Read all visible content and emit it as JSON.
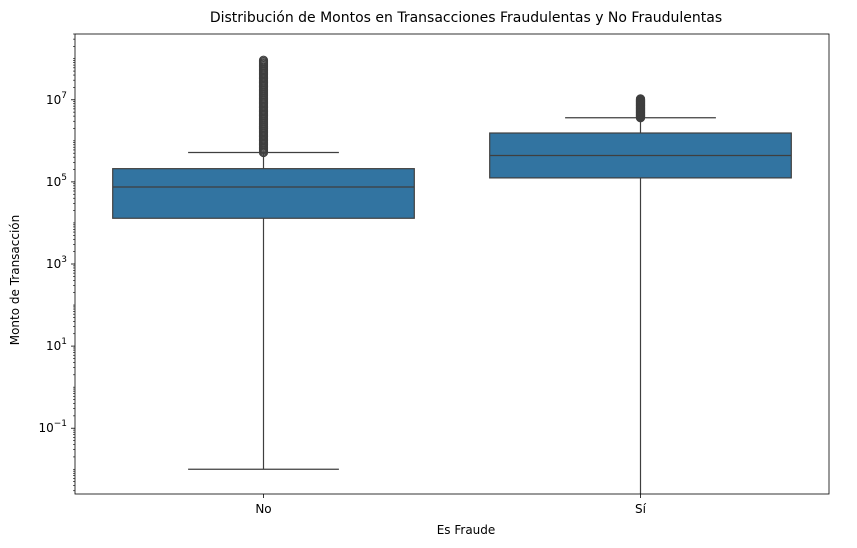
{
  "chart_data": {
    "type": "boxplot",
    "title": "Distribución de Montos en Transacciones Fraudulentas y No Fraudulentas",
    "xlabel": "Es Fraude",
    "ylabel": "Monto de Transacción",
    "yscale": "log",
    "ylim": [
      0.0025,
      400000000
    ],
    "categories": [
      "No",
      "Sí"
    ],
    "y_ticks": [
      {
        "value": 0.1,
        "base": "10",
        "exp": "−1"
      },
      {
        "value": 10,
        "base": "10",
        "exp": "1"
      },
      {
        "value": 1000,
        "base": "10",
        "exp": "3"
      },
      {
        "value": 100000,
        "base": "10",
        "exp": "5"
      },
      {
        "value": 10000000,
        "base": "10",
        "exp": "7"
      }
    ],
    "boxes": [
      {
        "category": "No",
        "whisker_low": 0.01,
        "q1": 13000,
        "median": 75000,
        "q3": 210000,
        "whisker_high": 520000,
        "outliers_min": 520000,
        "outliers_max": 92000000
      },
      {
        "category": "Sí",
        "whisker_low": 0.0025,
        "q1": 125000,
        "median": 440000,
        "q3": 1550000,
        "whisker_high": 3650000,
        "outliers_min": 3650000,
        "outliers_max": 10500000
      }
    ],
    "box_color": "#3274a1",
    "line_color": "#3f3f3f"
  }
}
